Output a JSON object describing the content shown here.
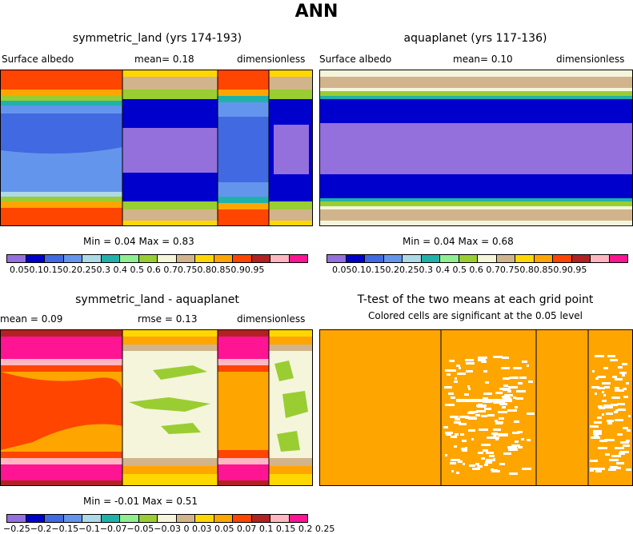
{
  "figure": {
    "title": "ANN"
  },
  "panels": {
    "top_left": {
      "title": "symmetric_land (yrs 174-193)",
      "variable": "Surface albedo",
      "mean": "mean=    0.18",
      "units": "dimensionless",
      "min_max": "Min =    0.04  Max =    0.83"
    },
    "top_right": {
      "title": "aquaplanet (yrs 117-136)",
      "variable": "Surface albedo",
      "mean": "mean=    0.10",
      "units": "dimensionless",
      "min_max": "Min =    0.04  Max =    0.68"
    },
    "bottom_left": {
      "title": "symmetric_land - aquaplanet",
      "mean": "mean =   0.09",
      "rmse": "rmse =    0.13",
      "units": "dimensionless",
      "min_max": "Min =   -0.01  Max =    0.51"
    },
    "bottom_right": {
      "title": "T-test of the two means at each grid point",
      "subtitle": "Colored cells are significant at the 0.05 level"
    }
  },
  "chart_data": [
    {
      "type": "heatmap",
      "name": "symmetric_land surface albedo",
      "levels": [
        "0.05",
        "0.1",
        "0.15",
        "0.2",
        "0.25",
        "0.3",
        "0.4",
        "0.5",
        "0.6",
        "0.7",
        "0.75",
        "0.8",
        "0.85",
        "0.9",
        "0.95"
      ],
      "colors": [
        "#9370db",
        "#0000cd",
        "#4169e1",
        "#6495ed",
        "#add8e6",
        "#20b2aa",
        "#90ee90",
        "#9acd32",
        "#f5f5dc",
        "#d2b48c",
        "#ffd700",
        "#ffa500",
        "#ff4500",
        "#b22222",
        "#ffb6c1",
        "#ff1493"
      ],
      "tick_labels": "0.050.10.150.20.250.3 0.4 0.5 0.6 0.70.750.80.850.90.95",
      "min": 0.04,
      "max": 0.83,
      "mean": 0.18
    },
    {
      "type": "heatmap",
      "name": "aquaplanet surface albedo",
      "levels": [
        "0.05",
        "0.1",
        "0.15",
        "0.2",
        "0.25",
        "0.3",
        "0.4",
        "0.5",
        "0.6",
        "0.7",
        "0.75",
        "0.8",
        "0.85",
        "0.9",
        "0.95"
      ],
      "tick_labels": "0.050.10.150.20.250.3 0.4 0.5 0.6 0.70.750.80.850.90.95",
      "min": 0.04,
      "max": 0.68,
      "mean": 0.1
    },
    {
      "type": "heatmap",
      "name": "difference symmetric_land - aquaplanet",
      "levels": [
        "-0.25",
        "-0.2",
        "-0.15",
        "-0.1",
        "-0.07",
        "-0.05",
        "-0.03",
        "0",
        "0.03",
        "0.05",
        "0.07",
        "0.1",
        "0.15",
        "0.2",
        "0.25"
      ],
      "colors": [
        "#9370db",
        "#0000cd",
        "#4169e1",
        "#6495ed",
        "#add8e6",
        "#20b2aa",
        "#90ee90",
        "#9acd32",
        "#f5f5dc",
        "#d2b48c",
        "#ffd700",
        "#ffa500",
        "#ff4500",
        "#b22222",
        "#ffb6c1",
        "#ff1493"
      ],
      "tick_labels": "−0.25−0.2−0.15−0.1−0.07−0.05−0.03 0 0.03 0.05 0.07 0.1 0.15 0.2 0.25",
      "min": -0.01,
      "max": 0.51,
      "mean": 0.09,
      "rmse": 0.13
    },
    {
      "type": "heatmap",
      "name": "t-test significance",
      "significant_color": "#ffa500",
      "insignificant_color": "#ffffff"
    }
  ]
}
